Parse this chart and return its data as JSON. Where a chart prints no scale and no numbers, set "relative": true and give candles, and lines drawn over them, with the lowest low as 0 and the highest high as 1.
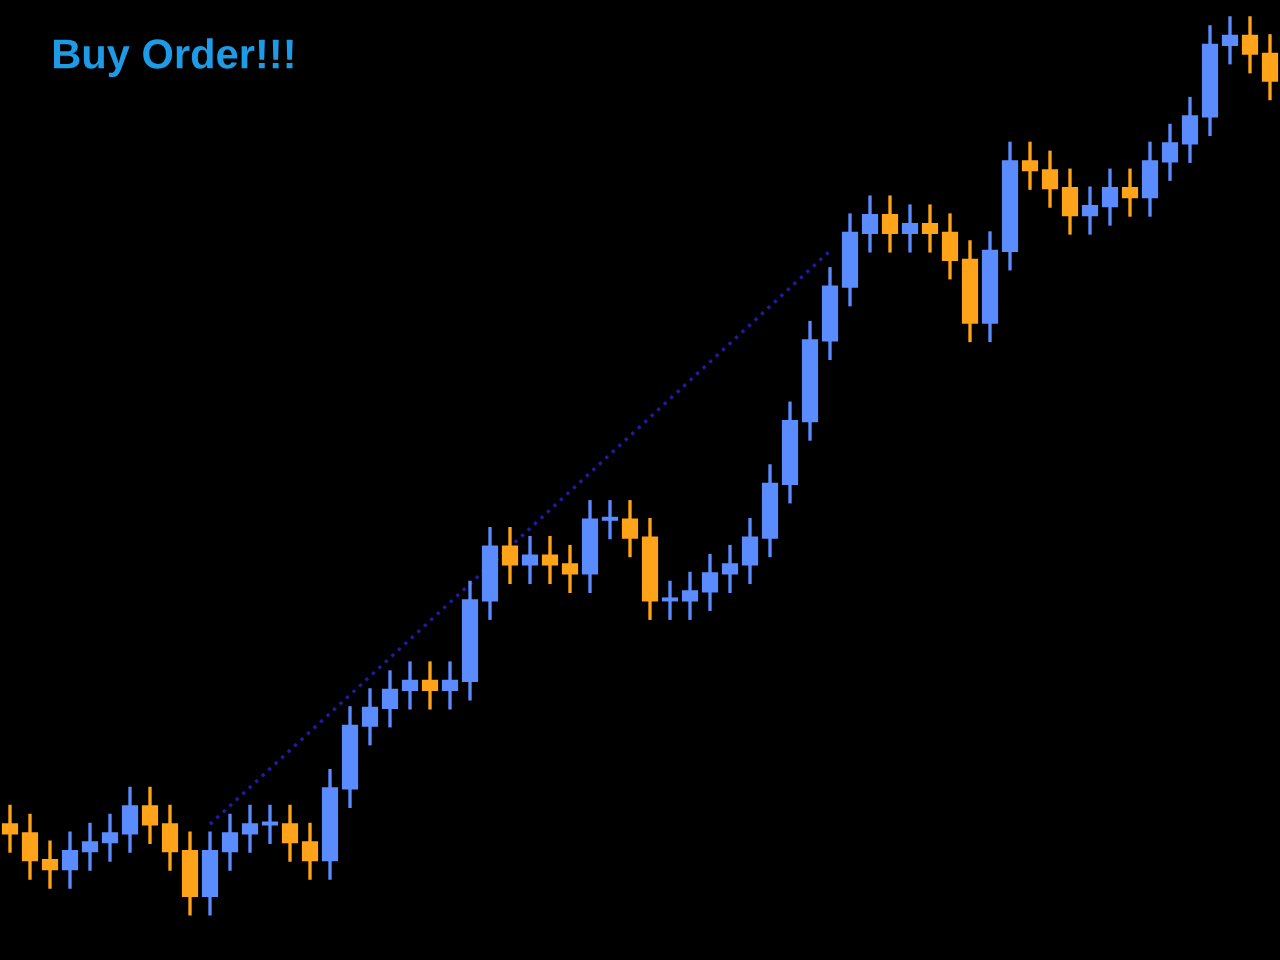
{
  "chart_data": {
    "type": "candlestick",
    "title": "Buy Order!!!",
    "relative": true,
    "grid": false,
    "legend": false,
    "categories": [
      null,
      null,
      null,
      null,
      null,
      null,
      null,
      null,
      null,
      null,
      null,
      null,
      null,
      null,
      null,
      null,
      null,
      null,
      null,
      null,
      null,
      null,
      null,
      null,
      null,
      null,
      null,
      null,
      null,
      null,
      null,
      null,
      null,
      null,
      null,
      null,
      null,
      null,
      null,
      null,
      null,
      null,
      null,
      null,
      null,
      null,
      null,
      null,
      null,
      null,
      null,
      null,
      null,
      null,
      null,
      null,
      null,
      null,
      null,
      null,
      null,
      null,
      null,
      null
    ],
    "series": [
      {
        "type": "candlestick",
        "ohlc": [
          [
            0.1,
            0.12,
            0.07,
            0.09
          ],
          [
            0.09,
            0.11,
            0.04,
            0.06
          ],
          [
            0.06,
            0.08,
            0.03,
            0.05
          ],
          [
            0.05,
            0.09,
            0.03,
            0.07
          ],
          [
            0.07,
            0.1,
            0.05,
            0.08
          ],
          [
            0.08,
            0.11,
            0.06,
            0.09
          ],
          [
            0.09,
            0.14,
            0.07,
            0.12
          ],
          [
            0.12,
            0.14,
            0.08,
            0.1
          ],
          [
            0.1,
            0.12,
            0.05,
            0.07
          ],
          [
            0.07,
            0.09,
            0.0,
            0.02
          ],
          [
            0.02,
            0.09,
            0.0,
            0.07
          ],
          [
            0.07,
            0.11,
            0.05,
            0.09
          ],
          [
            0.09,
            0.12,
            0.07,
            0.1
          ],
          [
            0.1,
            0.12,
            0.08,
            0.1
          ],
          [
            0.1,
            0.12,
            0.06,
            0.08
          ],
          [
            0.08,
            0.1,
            0.04,
            0.06
          ],
          [
            0.06,
            0.16,
            0.04,
            0.14
          ],
          [
            0.14,
            0.23,
            0.12,
            0.21
          ],
          [
            0.21,
            0.25,
            0.19,
            0.23
          ],
          [
            0.23,
            0.27,
            0.21,
            0.25
          ],
          [
            0.25,
            0.28,
            0.23,
            0.26
          ],
          [
            0.26,
            0.28,
            0.23,
            0.25
          ],
          [
            0.25,
            0.28,
            0.23,
            0.26
          ],
          [
            0.26,
            0.37,
            0.24,
            0.35
          ],
          [
            0.35,
            0.43,
            0.33,
            0.41
          ],
          [
            0.41,
            0.43,
            0.37,
            0.39
          ],
          [
            0.39,
            0.42,
            0.37,
            0.4
          ],
          [
            0.4,
            0.42,
            0.37,
            0.39
          ],
          [
            0.39,
            0.41,
            0.36,
            0.38
          ],
          [
            0.38,
            0.46,
            0.36,
            0.44
          ],
          [
            0.44,
            0.46,
            0.42,
            0.44
          ],
          [
            0.44,
            0.46,
            0.4,
            0.42
          ],
          [
            0.42,
            0.44,
            0.33,
            0.35
          ],
          [
            0.35,
            0.37,
            0.33,
            0.35
          ],
          [
            0.35,
            0.38,
            0.33,
            0.36
          ],
          [
            0.36,
            0.4,
            0.34,
            0.38
          ],
          [
            0.38,
            0.41,
            0.36,
            0.39
          ],
          [
            0.39,
            0.44,
            0.37,
            0.42
          ],
          [
            0.42,
            0.5,
            0.4,
            0.48
          ],
          [
            0.48,
            0.57,
            0.46,
            0.55
          ],
          [
            0.55,
            0.66,
            0.53,
            0.64
          ],
          [
            0.64,
            0.72,
            0.62,
            0.7
          ],
          [
            0.7,
            0.78,
            0.68,
            0.76
          ],
          [
            0.76,
            0.8,
            0.74,
            0.78
          ],
          [
            0.78,
            0.8,
            0.74,
            0.76
          ],
          [
            0.76,
            0.79,
            0.74,
            0.77
          ],
          [
            0.77,
            0.79,
            0.74,
            0.76
          ],
          [
            0.76,
            0.78,
            0.71,
            0.73
          ],
          [
            0.73,
            0.75,
            0.64,
            0.66
          ],
          [
            0.66,
            0.76,
            0.64,
            0.74
          ],
          [
            0.74,
            0.86,
            0.72,
            0.84
          ],
          [
            0.84,
            0.86,
            0.81,
            0.83
          ],
          [
            0.83,
            0.85,
            0.79,
            0.81
          ],
          [
            0.81,
            0.83,
            0.76,
            0.78
          ],
          [
            0.78,
            0.81,
            0.76,
            0.79
          ],
          [
            0.79,
            0.83,
            0.77,
            0.81
          ],
          [
            0.81,
            0.83,
            0.78,
            0.8
          ],
          [
            0.8,
            0.86,
            0.78,
            0.84
          ],
          [
            0.84,
            0.88,
            0.82,
            0.86
          ],
          [
            0.86,
            0.91,
            0.84,
            0.89
          ],
          [
            0.89,
            0.99,
            0.87,
            0.97
          ],
          [
            0.97,
            1.0,
            0.95,
            0.98
          ],
          [
            0.98,
            1.0,
            0.94,
            0.96
          ],
          [
            0.96,
            0.98,
            0.91,
            0.93
          ]
        ],
        "colors": [
          "#ffa31a",
          "#ffa31a",
          "#ffa31a",
          "#5b8cff",
          "#5b8cff",
          "#5b8cff",
          "#5b8cff",
          "#ffa31a",
          "#ffa31a",
          "#ffa31a",
          "#5b8cff",
          "#5b8cff",
          "#5b8cff",
          "#5b8cff",
          "#ffa31a",
          "#ffa31a",
          "#5b8cff",
          "#5b8cff",
          "#5b8cff",
          "#5b8cff",
          "#5b8cff",
          "#ffa31a",
          "#5b8cff",
          "#5b8cff",
          "#5b8cff",
          "#ffa31a",
          "#5b8cff",
          "#ffa31a",
          "#ffa31a",
          "#5b8cff",
          "#5b8cff",
          "#ffa31a",
          "#ffa31a",
          "#5b8cff",
          "#5b8cff",
          "#5b8cff",
          "#5b8cff",
          "#5b8cff",
          "#5b8cff",
          "#5b8cff",
          "#5b8cff",
          "#5b8cff",
          "#5b8cff",
          "#5b8cff",
          "#ffa31a",
          "#5b8cff",
          "#ffa31a",
          "#ffa31a",
          "#ffa31a",
          "#5b8cff",
          "#5b8cff",
          "#ffa31a",
          "#ffa31a",
          "#ffa31a",
          "#5b8cff",
          "#5b8cff",
          "#ffa31a",
          "#5b8cff",
          "#5b8cff",
          "#5b8cff",
          "#5b8cff",
          "#5b8cff",
          "#ffa31a",
          "#ffa31a"
        ]
      },
      {
        "type": "line",
        "values": [
          null,
          null,
          null,
          null,
          null,
          null,
          null,
          null,
          null,
          null,
          0.1,
          null,
          null,
          null,
          null,
          null,
          null,
          null,
          null,
          null,
          null,
          null,
          null,
          null,
          null,
          null,
          null,
          null,
          null,
          null,
          null,
          null,
          null,
          null,
          null,
          null,
          null,
          null,
          null,
          null,
          null,
          0.74,
          null,
          null,
          null,
          null,
          null,
          null,
          null,
          null,
          null,
          null,
          null,
          null,
          null,
          null,
          null,
          null,
          null,
          null,
          null,
          null,
          null,
          null
        ],
        "color": "#1c1ca8",
        "line_style": "dotted"
      }
    ]
  }
}
